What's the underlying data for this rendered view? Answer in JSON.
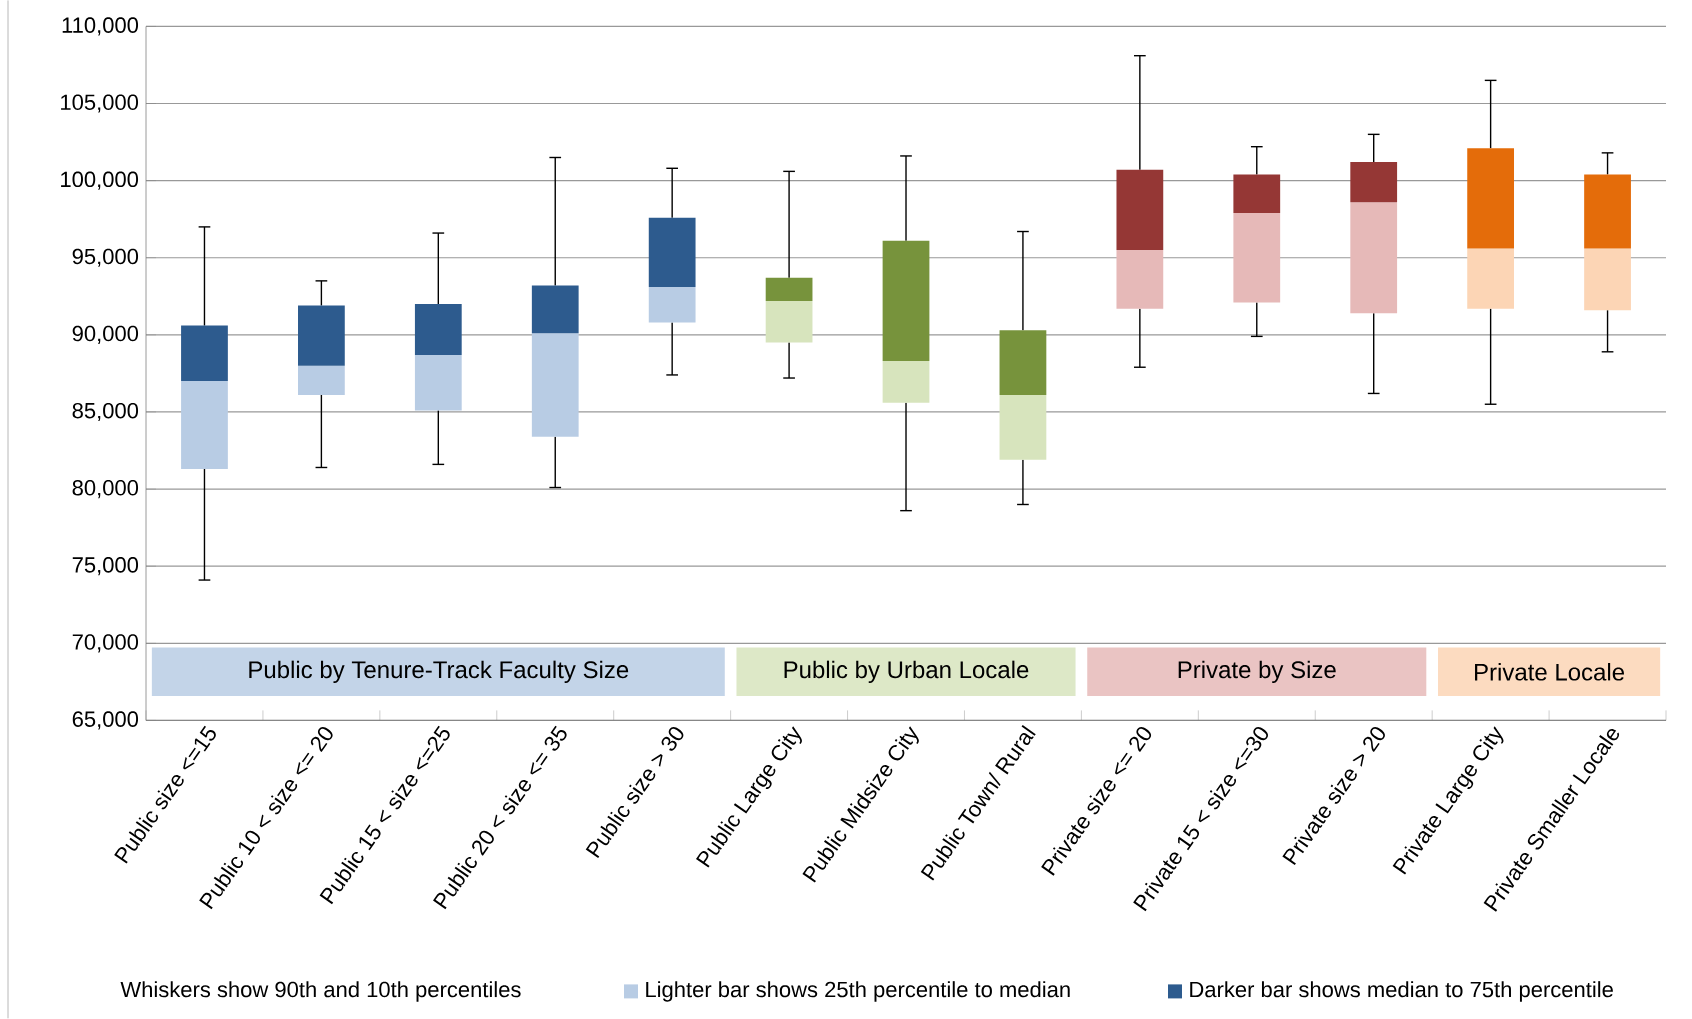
{
  "chart_data": {
    "type": "box",
    "categories": [
      "Public size <=15",
      "Public 10 < size <= 20",
      "Public 15 < size <=25",
      "Public 20 < size <= 35",
      "Public size > 30",
      "Public Large City",
      "Public Midsize City",
      "Public Town/ Rural",
      "Private size <= 20",
      "Private 15 < size <=30",
      "Private size > 20",
      "Private Large City",
      "Private Smaller Locale"
    ],
    "ylim": [
      65000,
      110000
    ],
    "yticks": [
      {
        "value": 65000,
        "label": "65,000"
      },
      {
        "value": 70000,
        "label": "70,000"
      },
      {
        "value": 75000,
        "label": "75,000"
      },
      {
        "value": 80000,
        "label": "80,000"
      },
      {
        "value": 85000,
        "label": "85,000"
      },
      {
        "value": 90000,
        "label": "90,000"
      },
      {
        "value": 95000,
        "label": "95,000"
      },
      {
        "value": 100000,
        "label": "100,000"
      },
      {
        "value": 105000,
        "label": "105,000"
      },
      {
        "value": 110000,
        "label": "110,000"
      }
    ],
    "grid": "y",
    "series": [
      {
        "name": "Public by Tenure-Track Faculty Size",
        "color": "#2d5b8e",
        "colors": [
          "#b8cce4",
          "#b8cce4",
          "#b8cce4",
          "#b8cce4",
          "#b8cce4",
          null,
          null,
          null,
          null,
          null,
          null,
          null,
          null
        ],
        "boxes": [
          {
            "low": 74100,
            "q1": 81300,
            "median": 87000,
            "q3": 90600,
            "high": 97000
          },
          {
            "low": 81400,
            "q1": 86100,
            "median": 88000,
            "q3": 91900,
            "high": 93500
          },
          {
            "low": 81600,
            "q1": 85100,
            "median": 88700,
            "q3": 92000,
            "high": 96600
          },
          {
            "low": 80100,
            "q1": 83400,
            "median": 90100,
            "q3": 93200,
            "high": 101500
          },
          {
            "low": 87400,
            "q1": 90800,
            "median": 93100,
            "q3": 97600,
            "high": 100800
          },
          null,
          null,
          null,
          null,
          null,
          null,
          null,
          null
        ]
      },
      {
        "name": "Public by Urban Locale",
        "color": "#77933c",
        "colors": [
          null,
          null,
          null,
          null,
          null,
          "#d7e4bd",
          "#d7e4bd",
          "#d7e4bd",
          null,
          null,
          null,
          null,
          null
        ],
        "boxes": [
          null,
          null,
          null,
          null,
          null,
          {
            "low": 87200,
            "q1": 89500,
            "median": 92200,
            "q3": 93700,
            "high": 100600
          },
          {
            "low": 78600,
            "q1": 85600,
            "median": 88300,
            "q3": 96100,
            "high": 101600
          },
          {
            "low": 79000,
            "q1": 81900,
            "median": 86100,
            "q3": 90300,
            "high": 96700
          },
          null,
          null,
          null,
          null,
          null
        ]
      },
      {
        "name": "Private by Size",
        "color": "#953735",
        "colors": [
          null,
          null,
          null,
          null,
          null,
          null,
          null,
          null,
          "#e6b9b8",
          "#e6b9b8",
          "#e6b9b8",
          null,
          null
        ],
        "boxes": [
          null,
          null,
          null,
          null,
          null,
          null,
          null,
          null,
          {
            "low": 87900,
            "q1": 91700,
            "median": 95500,
            "q3": 100700,
            "high": 108100
          },
          {
            "low": 89900,
            "q1": 92100,
            "median": 97900,
            "q3": 100400,
            "high": 102200
          },
          {
            "low": 86200,
            "q1": 91400,
            "median": 98600,
            "q3": 101200,
            "high": 103000
          },
          null,
          null
        ]
      },
      {
        "name": "Private Locale",
        "color": "#e46c0a",
        "colors": [
          null,
          null,
          null,
          null,
          null,
          null,
          null,
          null,
          null,
          null,
          null,
          "#fcd5b5",
          "#fcd5b5"
        ],
        "boxes": [
          null,
          null,
          null,
          null,
          null,
          null,
          null,
          null,
          null,
          null,
          null,
          {
            "low": 85500,
            "q1": 91700,
            "median": 95600,
            "q3": 102100,
            "high": 106500
          },
          {
            "low": 88900,
            "q1": 91600,
            "median": 95600,
            "q3": 100400,
            "high": 101800
          }
        ]
      }
    ],
    "annotations": [
      "Whiskers show 90th and 10th percentiles",
      "Lighter bar shows 25th percentile to median",
      "Darker bar shows median to 75th percentile"
    ]
  }
}
